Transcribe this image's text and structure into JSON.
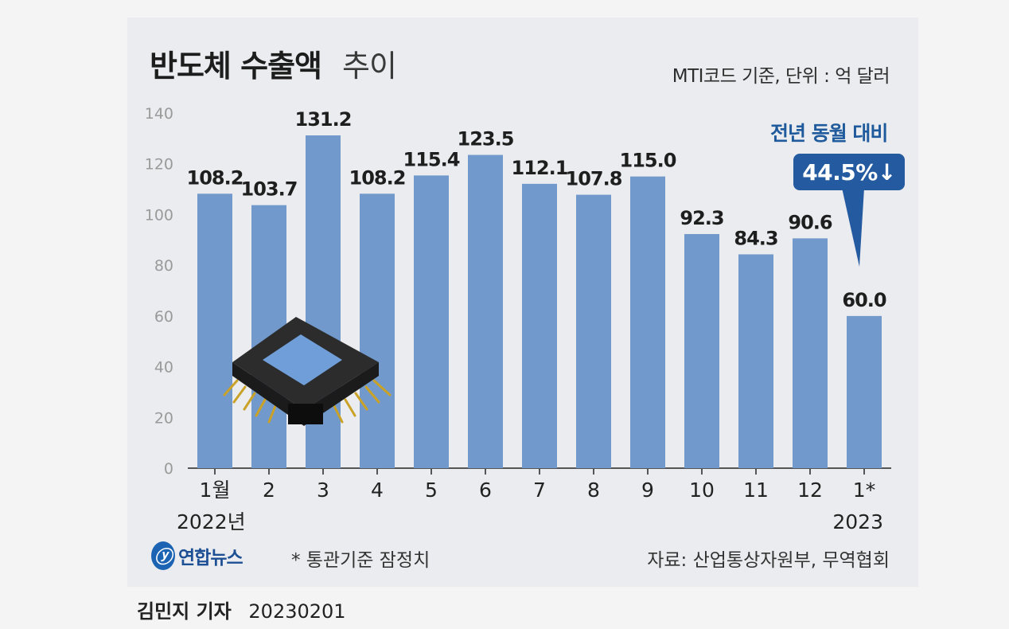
{
  "header": {
    "title_strong": "반도체 수출액",
    "title_light": "추이",
    "unit_note": "MTI코드 기준, 단위 : 억 달러"
  },
  "callout": {
    "label": "전년 동월 대비",
    "value": "44.5%↓"
  },
  "footer": {
    "logo_mark": "ⓨ",
    "logo_text": "연합뉴스",
    "footnote": "* 통관기준 잠정치",
    "source": "자료: 산업통상자원부, 무역협회"
  },
  "byline": {
    "name": "김민지 기자",
    "date": "20230201"
  },
  "colors": {
    "bar": "#7199cb",
    "axis": "#555555",
    "accent": "#235aa0"
  },
  "chart_data": {
    "type": "bar",
    "categories": [
      "1월",
      "2",
      "3",
      "4",
      "5",
      "6",
      "7",
      "8",
      "9",
      "10",
      "11",
      "12",
      "1*"
    ],
    "year_labels": [
      "2022년",
      "",
      "",
      "",
      "",
      "",
      "",
      "",
      "",
      "",
      "",
      "",
      "2023"
    ],
    "values": [
      108.2,
      103.7,
      131.2,
      108.2,
      115.4,
      123.5,
      112.1,
      107.8,
      115.0,
      92.3,
      84.3,
      90.6,
      60.0
    ],
    "value_labels": [
      "108.2",
      "103.7",
      "131.2",
      "108.2",
      "115.4",
      "123.5",
      "112.1",
      "107.8",
      "115.0",
      "92.3",
      "84.3",
      "90.6",
      "60.0"
    ],
    "yticks": [
      0,
      20,
      40,
      60,
      80,
      100,
      120,
      140
    ],
    "ylim": [
      0,
      140
    ],
    "grid": false,
    "xlabel": "",
    "ylabel": ""
  }
}
